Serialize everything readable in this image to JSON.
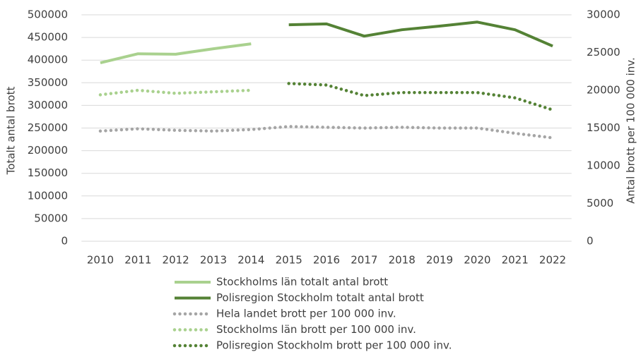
{
  "chart_data": {
    "type": "line",
    "y_label": "Totalt antal brott",
    "y2_label": "Antal brott per 100 000 inv.",
    "categories": [
      "2010",
      "2011",
      "2012",
      "2013",
      "2014",
      "2015",
      "2016",
      "2017",
      "2018",
      "2019",
      "2020",
      "2021",
      "2022"
    ],
    "ylim": [
      0,
      500000
    ],
    "yticks": [
      0,
      50000,
      100000,
      150000,
      200000,
      250000,
      300000,
      350000,
      400000,
      450000,
      500000
    ],
    "y2lim": [
      0,
      30000
    ],
    "y2ticks": [
      0,
      5000,
      10000,
      15000,
      20000,
      25000,
      30000
    ],
    "grid": true,
    "legend": "bottom",
    "series": [
      {
        "name": "Stockholms län totalt antal brott",
        "color": "#a9d18e",
        "style": "solid",
        "values": [
          394000,
          414000,
          413000,
          425000,
          436000,
          null,
          null,
          null,
          null,
          null,
          null,
          null,
          null
        ]
      },
      {
        "name": "Polisregion Stockholm totalt antal brott",
        "color": "#548235",
        "style": "solid",
        "values": [
          null,
          null,
          null,
          null,
          null,
          478000,
          480000,
          453000,
          467000,
          475000,
          484000,
          467000,
          431000
        ]
      },
      {
        "name": "Hela landet brott per 100 000 inv.",
        "color": "#a5a5a5",
        "style": "dotted",
        "axis": "y2",
        "values": [
          14600,
          14900,
          14700,
          14600,
          14800,
          15200,
          15100,
          15000,
          15100,
          15000,
          15000,
          14300,
          13700
        ]
      },
      {
        "name": "Stockholms län brott per 100 000 inv.",
        "color": "#a9d18e",
        "style": "dotted",
        "axis": "y2",
        "values": [
          19400,
          20000,
          19600,
          19800,
          20000,
          null,
          null,
          null,
          null,
          null,
          null,
          null,
          null
        ]
      },
      {
        "name": "Polisregion Stockholm brott per 100 000 inv.",
        "color": "#548235",
        "style": "dotted",
        "axis": "y2",
        "values": [
          null,
          null,
          null,
          null,
          null,
          20900,
          20700,
          19300,
          19700,
          19700,
          19700,
          19000,
          17400
        ]
      }
    ]
  }
}
